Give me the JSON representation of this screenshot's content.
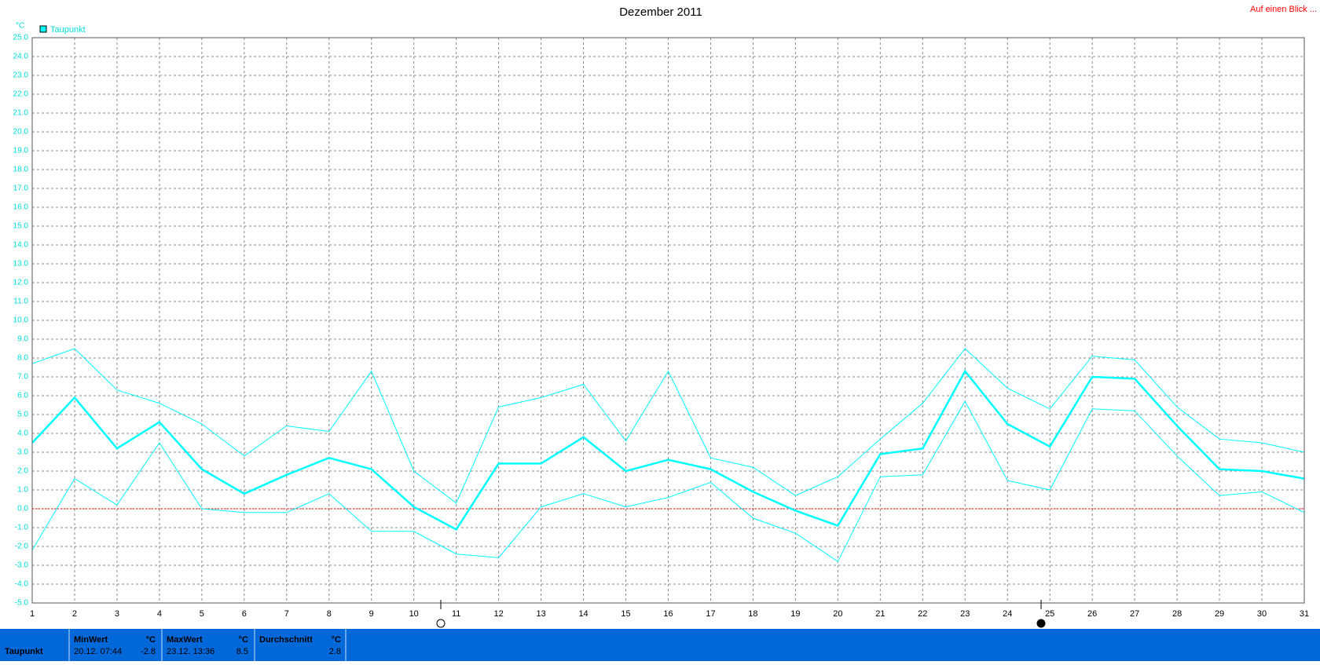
{
  "chart_data": {
    "type": "line",
    "title": "Dezember 2011",
    "y_unit": "°C",
    "link": "Auf einen Blick ...",
    "x": [
      1,
      2,
      3,
      4,
      5,
      6,
      7,
      8,
      9,
      10,
      11,
      12,
      13,
      14,
      15,
      16,
      17,
      18,
      19,
      20,
      21,
      22,
      23,
      24,
      25,
      26,
      27,
      28,
      29,
      30,
      31
    ],
    "xlim": [
      1,
      31
    ],
    "xticks": [
      1,
      2,
      3,
      4,
      5,
      6,
      7,
      8,
      9,
      10,
      11,
      12,
      13,
      14,
      15,
      16,
      17,
      18,
      19,
      20,
      21,
      22,
      23,
      24,
      25,
      26,
      27,
      28,
      29,
      30,
      31
    ],
    "ylim": [
      -5,
      25
    ],
    "yticks": [
      {
        "value": -5,
        "label": "-5.0"
      },
      {
        "value": -4,
        "label": "-4.0"
      },
      {
        "value": -3,
        "label": "-3.0"
      },
      {
        "value": -2,
        "label": "-2.0"
      },
      {
        "value": -1,
        "label": "-1.0"
      },
      {
        "value": 0,
        "label": "0.0"
      },
      {
        "value": 1,
        "label": "1.0"
      },
      {
        "value": 2,
        "label": "2.0"
      },
      {
        "value": 3,
        "label": "3.0"
      },
      {
        "value": 4,
        "label": "4.0"
      },
      {
        "value": 5,
        "label": "5.0"
      },
      {
        "value": 6,
        "label": "6.0"
      },
      {
        "value": 7,
        "label": "7.0"
      },
      {
        "value": 8,
        "label": "8.0"
      },
      {
        "value": 9,
        "label": "9.0"
      },
      {
        "value": 10,
        "label": "10.0"
      },
      {
        "value": 11,
        "label": "11.0"
      },
      {
        "value": 12,
        "label": "12.0"
      },
      {
        "value": 13,
        "label": "13.0"
      },
      {
        "value": 14,
        "label": "14.0"
      },
      {
        "value": 15,
        "label": "15.0"
      },
      {
        "value": 16,
        "label": "16.0"
      },
      {
        "value": 17,
        "label": "17.0"
      },
      {
        "value": 18,
        "label": "18.0"
      },
      {
        "value": 19,
        "label": "19.0"
      },
      {
        "value": 20,
        "label": "20.0"
      },
      {
        "value": 21,
        "label": "21.0"
      },
      {
        "value": 22,
        "label": "22.0"
      },
      {
        "value": 23,
        "label": "23.0"
      },
      {
        "value": 24,
        "label": "24.0"
      },
      {
        "value": 25,
        "label": "25.0"
      }
    ],
    "grid": true,
    "reference_line": {
      "value": 0,
      "color": "#ff0000"
    },
    "series": [
      {
        "name": "Taupunkt",
        "color": "#00ffff",
        "width": 2.5,
        "values": [
          3.5,
          5.9,
          3.2,
          4.6,
          2.1,
          0.8,
          1.8,
          2.7,
          2.1,
          0.1,
          -1.1,
          2.4,
          2.4,
          3.8,
          2.0,
          2.6,
          2.1,
          0.9,
          -0.1,
          -0.9,
          2.9,
          3.2,
          7.3,
          4.5,
          3.3,
          7.0,
          6.9,
          4.4,
          2.1,
          2.0,
          1.6
        ]
      },
      {
        "color": "#00ffff",
        "width": 1,
        "values": [
          7.7,
          8.5,
          6.3,
          5.6,
          4.5,
          2.8,
          4.4,
          4.1,
          7.3,
          2.0,
          0.3,
          5.4,
          5.9,
          6.6,
          3.6,
          7.3,
          2.7,
          2.2,
          0.7,
          1.7,
          3.7,
          5.6,
          8.5,
          6.4,
          5.3,
          8.1,
          7.9,
          5.4,
          3.7,
          3.5,
          3.0
        ]
      },
      {
        "color": "#00ffff",
        "width": 1,
        "values": [
          -2.2,
          1.6,
          0.2,
          3.5,
          0.0,
          -0.2,
          -0.2,
          0.8,
          -1.2,
          -1.2,
          -2.4,
          -2.6,
          0.1,
          0.8,
          0.1,
          0.6,
          1.4,
          -0.5,
          -1.3,
          -2.8,
          1.7,
          1.8,
          5.7,
          1.5,
          1.0,
          5.3,
          5.2,
          2.8,
          0.7,
          0.9,
          -0.2
        ]
      }
    ]
  },
  "stats": {
    "row_label": "Taupunkt",
    "min": {
      "header": "MinWert",
      "unit": "°C",
      "when": "20.12.  07:44",
      "value": -2.8
    },
    "max": {
      "header": "MaxWert",
      "unit": "°C",
      "when": "23.12.  13:36",
      "value": 8.5
    },
    "avg": {
      "header": "Durchschnitt",
      "unit": "°C",
      "value": 2.8
    }
  }
}
